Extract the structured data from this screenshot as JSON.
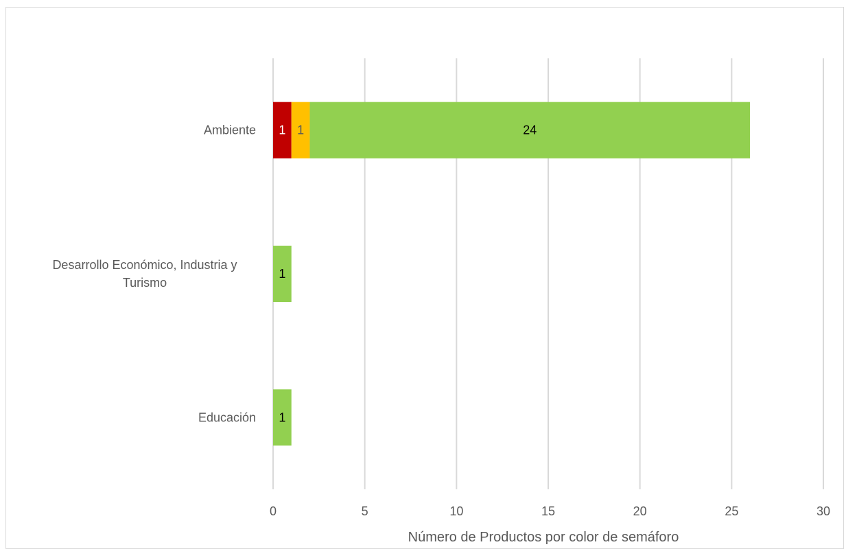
{
  "chart_data": {
    "type": "bar",
    "orientation": "horizontal",
    "stacked": true,
    "categories": [
      [
        "Ambiente"
      ],
      [
        "Desarrollo Económico, Industria y",
        "Turismo"
      ],
      [
        "Educación"
      ]
    ],
    "series": [
      {
        "color": "#c00000",
        "label_color": "#ffffff",
        "values": [
          1,
          0,
          0
        ]
      },
      {
        "color": "#ffc000",
        "label_color": "#595959",
        "values": [
          1,
          0,
          0
        ]
      },
      {
        "color": "#92d050",
        "label_color": "#000000",
        "values": [
          24,
          1,
          1
        ]
      }
    ],
    "xlabel": "Número de Productos por color de semáforo",
    "ylabel": "",
    "xlim": [
      0,
      30
    ],
    "xticks": [
      0,
      5,
      10,
      15,
      20,
      25,
      30
    ],
    "grid": true,
    "legend": "none"
  }
}
